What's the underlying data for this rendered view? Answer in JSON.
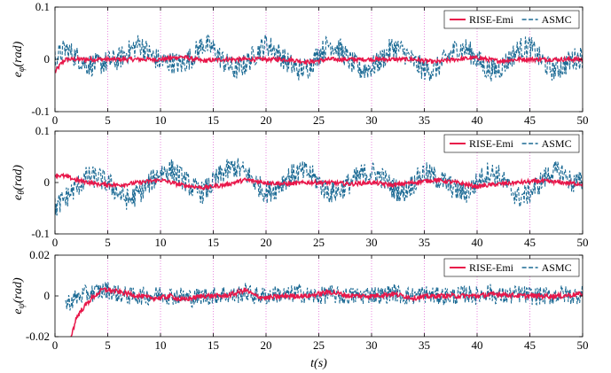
{
  "chart_data": {
    "type": "line",
    "x_label": "t(s)",
    "subplots": [
      {
        "ylabel": "e_φ(rad)",
        "ylabel_main": "e",
        "ylabel_sub": "φ",
        "ylabel_rest": "(rad)",
        "xlim": [
          0,
          50
        ],
        "ylim": [
          -0.1,
          0.1
        ],
        "xticks": [
          0,
          5,
          10,
          15,
          20,
          25,
          30,
          35,
          40,
          45,
          50
        ],
        "yticks": [
          -0.1,
          0,
          0.1
        ],
        "ytick_labels": [
          "-0.1",
          "0",
          "0.1"
        ],
        "grid": "vertical dotted magenta",
        "legend_position": "top-right",
        "series": [
          {
            "name": "RISE-Emi",
            "style": "solid",
            "color": "#E8174A",
            "x": [
              0,
              0.5,
              1,
              2,
              4,
              6,
              8,
              10,
              12,
              14,
              16,
              18,
              20,
              22,
              24,
              26,
              28,
              30,
              32,
              34,
              36,
              38,
              40,
              42,
              44,
              46,
              48,
              50
            ],
            "y": [
              -0.025,
              -0.01,
              0.0,
              0.0,
              0.0,
              0.0,
              0.0,
              0.0,
              0.005,
              -0.003,
              0.0,
              0.0,
              0.0,
              0.0,
              -0.005,
              0.0,
              0.0,
              0.0,
              0.0,
              0.0,
              -0.005,
              0.0,
              0.003,
              -0.003,
              0.0,
              0.0,
              0.0,
              0.0
            ],
            "noise": 0.004
          },
          {
            "name": "ASMC",
            "style": "dashed",
            "color": "#1B6A94",
            "x": [
              0,
              1,
              2,
              3,
              4,
              5,
              6,
              7,
              8,
              9,
              10,
              11,
              12,
              13,
              14,
              15,
              16,
              17,
              18,
              19,
              20,
              21,
              22,
              23,
              24,
              25,
              26,
              27,
              28,
              29,
              30,
              31,
              32,
              33,
              34,
              35,
              36,
              37,
              38,
              39,
              40,
              41,
              42,
              43,
              44,
              45,
              46,
              47,
              48,
              49,
              50
            ],
            "y": [
              0.0,
              0.02,
              0.005,
              -0.01,
              -0.01,
              -0.005,
              0.0,
              0.015,
              0.03,
              0.01,
              -0.005,
              -0.005,
              -0.01,
              0.005,
              0.03,
              0.02,
              -0.005,
              -0.02,
              -0.01,
              0.01,
              0.03,
              0.015,
              -0.005,
              -0.02,
              -0.015,
              0.01,
              0.03,
              0.02,
              -0.005,
              -0.02,
              -0.015,
              0.0,
              0.025,
              0.015,
              -0.005,
              -0.02,
              -0.02,
              0.0,
              0.02,
              0.02,
              0.0,
              -0.02,
              -0.02,
              0.0,
              0.02,
              0.025,
              0.0,
              -0.02,
              -0.015,
              0.0,
              0.005
            ],
            "noise": 0.022
          }
        ]
      },
      {
        "ylabel": "e_θ(rad)",
        "ylabel_main": "e",
        "ylabel_sub": "θ",
        "ylabel_rest": "(rad)",
        "xlim": [
          0,
          50
        ],
        "ylim": [
          -0.1,
          0.1
        ],
        "xticks": [
          0,
          5,
          10,
          15,
          20,
          25,
          30,
          35,
          40,
          45,
          50
        ],
        "yticks": [
          -0.1,
          0,
          0.1
        ],
        "ytick_labels": [
          "-0.1",
          "0",
          "0.1"
        ],
        "grid": "vertical dotted magenta",
        "legend_position": "top-right",
        "series": [
          {
            "name": "RISE-Emi",
            "style": "solid",
            "color": "#E8174A",
            "x": [
              0,
              1,
              2,
              4,
              6,
              8,
              10,
              12,
              14,
              16,
              18,
              20,
              22,
              24,
              26,
              28,
              30,
              32,
              34,
              36,
              38,
              40,
              42,
              44,
              46,
              48,
              50
            ],
            "y": [
              0.015,
              0.012,
              0.005,
              -0.003,
              -0.005,
              0.0,
              0.005,
              -0.005,
              -0.01,
              -0.005,
              0.005,
              0.0,
              -0.003,
              0.0,
              0.0,
              -0.003,
              0.0,
              -0.005,
              0.0,
              0.005,
              0.0,
              -0.008,
              -0.003,
              0.0,
              0.003,
              0.0,
              -0.003
            ],
            "noise": 0.004
          },
          {
            "name": "ASMC",
            "style": "dashed",
            "color": "#1B6A94",
            "x": [
              0,
              1,
              2,
              3,
              4,
              5,
              6,
              7,
              8,
              9,
              10,
              11,
              12,
              13,
              14,
              15,
              16,
              17,
              18,
              19,
              20,
              21,
              22,
              23,
              24,
              25,
              26,
              27,
              28,
              29,
              30,
              31,
              32,
              33,
              34,
              35,
              36,
              37,
              38,
              39,
              40,
              41,
              42,
              43,
              44,
              45,
              46,
              47,
              48,
              49,
              50
            ],
            "y": [
              -0.05,
              -0.03,
              -0.01,
              0.01,
              0.01,
              0.0,
              -0.02,
              -0.035,
              -0.02,
              0.0,
              0.02,
              0.025,
              0.01,
              -0.01,
              -0.02,
              0.0,
              0.02,
              0.03,
              0.02,
              0.0,
              -0.02,
              -0.01,
              0.01,
              0.02,
              0.02,
              0.0,
              -0.02,
              -0.015,
              0.0,
              0.015,
              0.02,
              0.01,
              -0.01,
              -0.02,
              0.0,
              0.02,
              0.01,
              0.0,
              -0.015,
              -0.02,
              0.0,
              0.02,
              0.015,
              -0.01,
              -0.03,
              -0.02,
              0.0,
              0.02,
              0.02,
              0.0,
              0.0
            ],
            "noise": 0.022
          }
        ]
      },
      {
        "ylabel": "e_ψ(rad)",
        "ylabel_main": "e",
        "ylabel_sub": "ψ",
        "ylabel_rest": "(rad)",
        "xlim": [
          0,
          50
        ],
        "ylim": [
          -0.02,
          0.02
        ],
        "xticks": [
          0,
          5,
          10,
          15,
          20,
          25,
          30,
          35,
          40,
          45,
          50
        ],
        "yticks": [
          -0.02,
          0,
          0.02
        ],
        "ytick_labels": [
          "-0.02",
          "0",
          "0.02"
        ],
        "grid": "vertical dotted magenta",
        "legend_position": "top-right",
        "series": [
          {
            "name": "RISE-Emi",
            "style": "solid",
            "color": "#E8174A",
            "x": [
              1.5,
              1.8,
              2,
              2.5,
              3,
              3.5,
              4,
              4.5,
              5,
              6,
              7,
              8,
              9,
              10,
              11,
              12,
              13,
              14,
              15,
              16,
              17,
              18,
              19,
              20,
              22,
              24,
              26,
              28,
              30,
              32,
              34,
              36,
              38,
              40,
              42,
              44,
              46,
              48,
              50
            ],
            "y": [
              -0.02,
              -0.015,
              -0.011,
              -0.007,
              -0.004,
              -0.001,
              0.001,
              0.003,
              0.003,
              0.002,
              0.001,
              0.0,
              -0.001,
              -0.001,
              0.0,
              -0.002,
              -0.001,
              0.0,
              0.0,
              0.0,
              0.001,
              0.003,
              0.0,
              -0.001,
              0.0,
              0.0,
              0.002,
              0.0,
              0.0,
              0.001,
              -0.001,
              0.0,
              0.0,
              0.0,
              0.001,
              0.0,
              0.0,
              0.0,
              0.001
            ],
            "noise": 0.0012
          },
          {
            "name": "ASMC",
            "style": "dashed",
            "color": "#1B6A94",
            "x": [
              1,
              2,
              3,
              4,
              5,
              6,
              7,
              8,
              9,
              10,
              11,
              12,
              13,
              14,
              15,
              16,
              17,
              18,
              19,
              20,
              21,
              22,
              23,
              24,
              25,
              26,
              27,
              28,
              29,
              30,
              31,
              32,
              33,
              34,
              35,
              36,
              37,
              38,
              39,
              40,
              41,
              42,
              43,
              44,
              45,
              46,
              47,
              48,
              49,
              50
            ],
            "y": [
              -0.004,
              -0.001,
              0.001,
              0.002,
              0.003,
              0.001,
              0.0,
              0.0,
              0.0,
              0.001,
              0.0,
              0.0,
              -0.001,
              0.0,
              0.0,
              0.001,
              0.0,
              0.002,
              0.0,
              0.0,
              0.001,
              0.0,
              0.002,
              0.0,
              0.0,
              0.001,
              0.0,
              0.0,
              0.0,
              0.001,
              0.0,
              0.002,
              0.0,
              0.0,
              0.001,
              0.0,
              0.0,
              0.0,
              0.001,
              0.0,
              0.002,
              0.0,
              0.0,
              0.001,
              0.0,
              0.0,
              0.0,
              0.001,
              0.0,
              0.001
            ],
            "noise": 0.0045
          }
        ]
      }
    ]
  }
}
